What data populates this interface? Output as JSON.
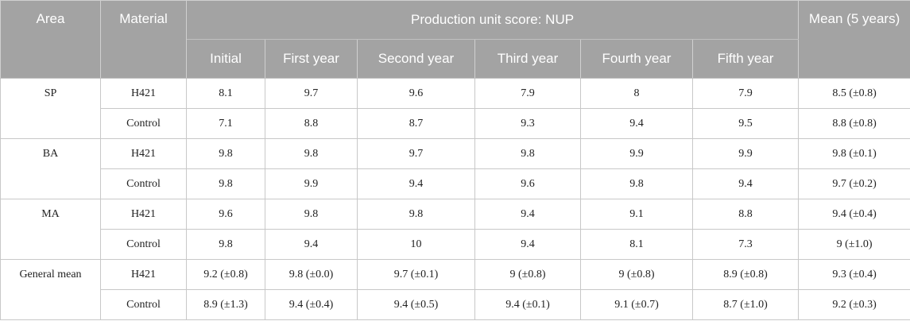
{
  "header": {
    "area": "Area",
    "material": "Material",
    "production_group": "Production unit score: NUP",
    "mean": "Mean (5 years)",
    "years": [
      "Initial",
      "First year",
      "Second year",
      "Third year",
      "Fourth year",
      "Fifth year"
    ]
  },
  "groups": [
    {
      "area": "SP",
      "rows": [
        {
          "material": "H421",
          "values": [
            "8.1",
            "9.7",
            "9.6",
            "7.9",
            "8",
            "7.9"
          ],
          "mean": "8.5 (±0.8)"
        },
        {
          "material": "Control",
          "values": [
            "7.1",
            "8.8",
            "8.7",
            "9.3",
            "9.4",
            "9.5"
          ],
          "mean": "8.8 (±0.8)"
        }
      ]
    },
    {
      "area": "BA",
      "rows": [
        {
          "material": "H421",
          "values": [
            "9.8",
            "9.8",
            "9.7",
            "9.8",
            "9.9",
            "9.9"
          ],
          "mean": "9.8 (±0.1)"
        },
        {
          "material": "Control",
          "values": [
            "9.8",
            "9.9",
            "9.4",
            "9.6",
            "9.8",
            "9.4"
          ],
          "mean": "9.7 (±0.2)"
        }
      ]
    },
    {
      "area": "MA",
      "rows": [
        {
          "material": "H421",
          "values": [
            "9.6",
            "9.8",
            "9.8",
            "9.4",
            "9.1",
            "8.8"
          ],
          "mean": "9.4 (±0.4)"
        },
        {
          "material": "Control",
          "values": [
            "9.8",
            "9.4",
            "10",
            "9.4",
            "8.1",
            "7.3"
          ],
          "mean": "9 (±1.0)"
        }
      ]
    },
    {
      "area": "General mean",
      "rows": [
        {
          "material": "H421",
          "values": [
            "9.2 (±0.8)",
            "9.8 (±0.0)",
            "9.7 (±0.1)",
            "9 (±0.8)",
            "9 (±0.8)",
            "8.9 (±0.8)"
          ],
          "mean": "9.3 (±0.4)"
        },
        {
          "material": "Control",
          "values": [
            "8.9 (±1.3)",
            "9.4 (±0.4)",
            "9.4 (±0.5)",
            "9.4 (±0.1)",
            "9.1 (±0.7)",
            "8.7 (±1.0)"
          ],
          "mean": "9.2 (±0.3)"
        }
      ]
    }
  ]
}
